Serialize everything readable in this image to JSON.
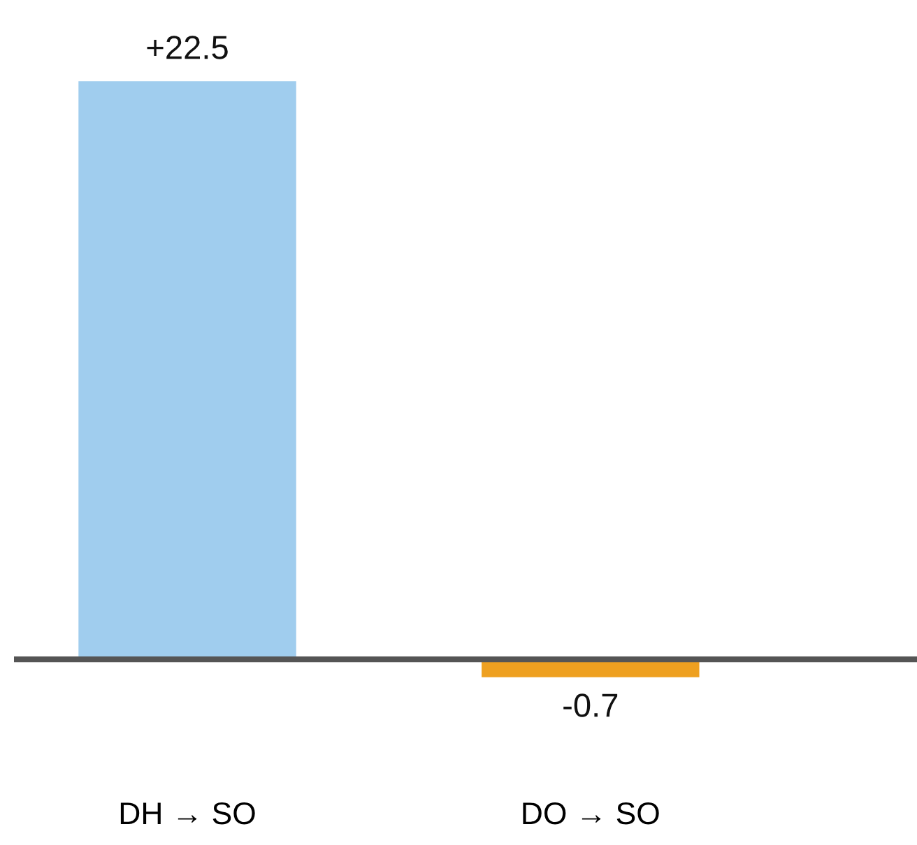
{
  "chart_data": {
    "type": "bar",
    "categories": [
      "DH → SO",
      "DO → SO"
    ],
    "values": [
      22.5,
      -0.7
    ],
    "colors": [
      "#a0cdee",
      "#eea020"
    ],
    "value_labels": [
      "+22.5",
      "-0.7"
    ],
    "grid": false,
    "legend": false
  }
}
